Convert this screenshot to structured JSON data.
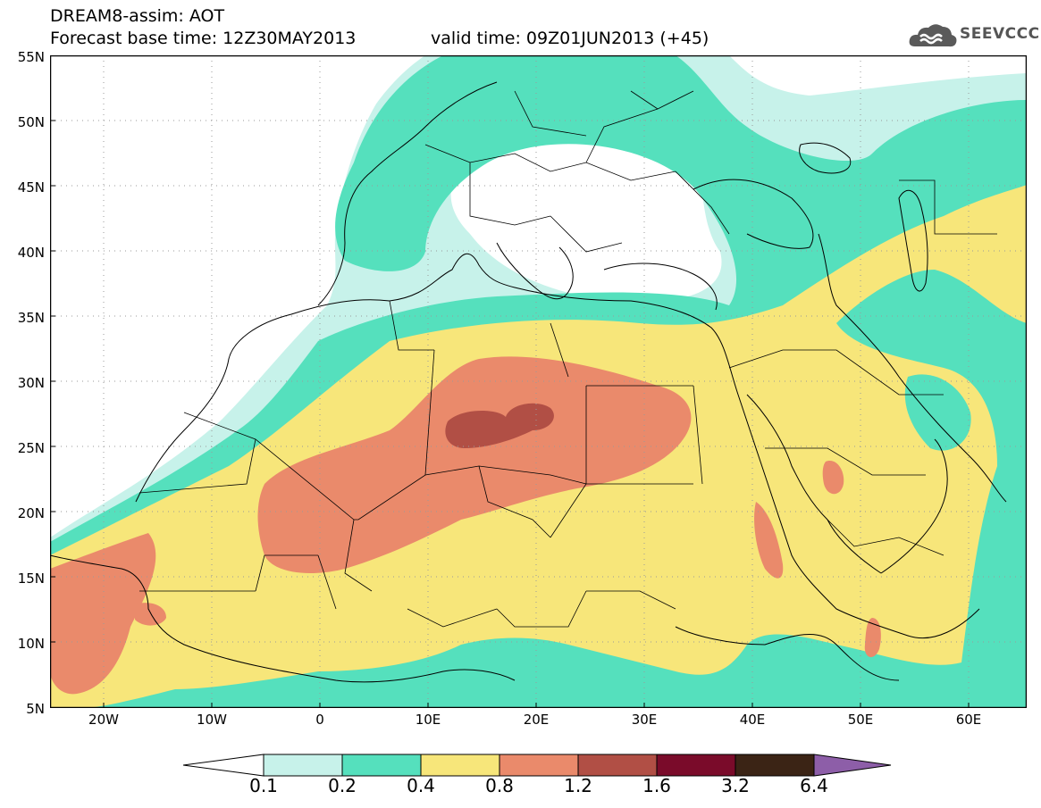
{
  "header": {
    "title_line1": "DREAM8-assim: AOT",
    "base_time": "Forecast base time: 12Z30MAY2013",
    "valid_time": "valid time: 09Z01JUN2013 (+45)",
    "logo_text": "SEEVCCC"
  },
  "axes": {
    "lat_labels": [
      "55N",
      "50N",
      "45N",
      "40N",
      "35N",
      "30N",
      "25N",
      "20N",
      "15N",
      "10N",
      "5N"
    ],
    "lon_labels": [
      "20W",
      "10W",
      "0",
      "10E",
      "20E",
      "30E",
      "40E",
      "50E",
      "60E"
    ]
  },
  "legend": {
    "thresholds": [
      "0.1",
      "0.2",
      "0.4",
      "0.8",
      "1.2",
      "1.6",
      "3.2",
      "6.4"
    ],
    "colors": [
      "#ffffff",
      "#c7f2ea",
      "#55e0bd",
      "#f7e67a",
      "#ea8a6b",
      "#b14f45",
      "#7a0b2a",
      "#3b2415",
      "#8d5ea8"
    ]
  },
  "colors": {
    "background": "#ffffff",
    "border": "#000000",
    "coast": "#000000",
    "grid": "#888888"
  }
}
